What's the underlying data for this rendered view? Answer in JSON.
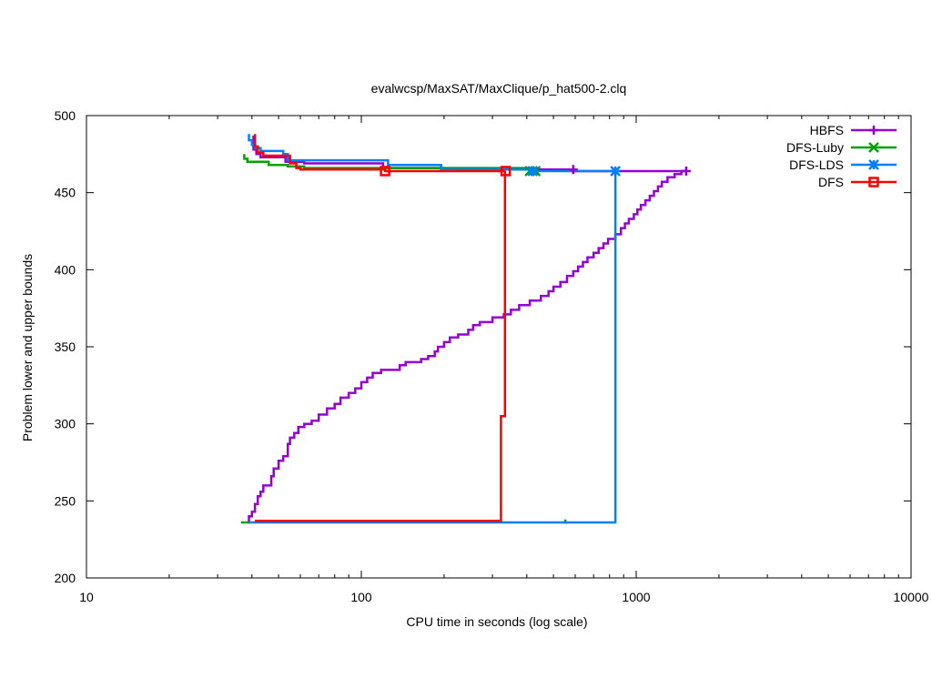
{
  "chart_data": {
    "type": "line",
    "title": "evalwcsp/MaxSAT/MaxClique/p_hat500-2.clq",
    "xlabel": "CPU time in seconds (log scale)",
    "ylabel": "Problem lower and upper bounds",
    "x_scale": "log",
    "xlim": [
      10,
      10000
    ],
    "ylim": [
      200,
      500
    ],
    "x_ticks": [
      10,
      100,
      1000,
      10000
    ],
    "x_tick_labels": [
      "10",
      "100",
      "1000",
      "10000"
    ],
    "y_ticks": [
      200,
      250,
      300,
      350,
      400,
      450,
      500
    ],
    "y_tick_labels": [
      "200",
      "250",
      "300",
      "350",
      "400",
      "450",
      "500"
    ],
    "grid": false,
    "legend_position": "top-right",
    "series": [
      {
        "name": "HBFS",
        "color": "#9400d3",
        "marker": "plus",
        "upper": [
          [
            40.5,
            487
          ],
          [
            40.5,
            478
          ],
          [
            41.5,
            478
          ],
          [
            41.5,
            475
          ],
          [
            43,
            475
          ],
          [
            43,
            473
          ],
          [
            53,
            473
          ],
          [
            53,
            470
          ],
          [
            62,
            470
          ],
          [
            62,
            469
          ],
          [
            120,
            469
          ],
          [
            120,
            466
          ],
          [
            200,
            466
          ],
          [
            200,
            465
          ],
          [
            590,
            465
          ],
          [
            590,
            464
          ],
          [
            1520,
            464
          ]
        ],
        "lower": [
          [
            38.5,
            236
          ],
          [
            39,
            236
          ],
          [
            39,
            240
          ],
          [
            40,
            240
          ],
          [
            40,
            243
          ],
          [
            41,
            243
          ],
          [
            41,
            248
          ],
          [
            42,
            248
          ],
          [
            42,
            253
          ],
          [
            43,
            253
          ],
          [
            43,
            256
          ],
          [
            44,
            256
          ],
          [
            44,
            260
          ],
          [
            47,
            260
          ],
          [
            47,
            266
          ],
          [
            48,
            266
          ],
          [
            48,
            271
          ],
          [
            50,
            271
          ],
          [
            50,
            276
          ],
          [
            52,
            276
          ],
          [
            52,
            279
          ],
          [
            54,
            279
          ],
          [
            54,
            287
          ],
          [
            55,
            287
          ],
          [
            55,
            291
          ],
          [
            57,
            291
          ],
          [
            57,
            294
          ],
          [
            59,
            294
          ],
          [
            59,
            298
          ],
          [
            62,
            298
          ],
          [
            62,
            300
          ],
          [
            66,
            300
          ],
          [
            66,
            302
          ],
          [
            70,
            302
          ],
          [
            70,
            306
          ],
          [
            75,
            306
          ],
          [
            75,
            310
          ],
          [
            80,
            310
          ],
          [
            80,
            313
          ],
          [
            84,
            313
          ],
          [
            84,
            317
          ],
          [
            90,
            317
          ],
          [
            90,
            320
          ],
          [
            95,
            320
          ],
          [
            95,
            323
          ],
          [
            100,
            323
          ],
          [
            100,
            327
          ],
          [
            105,
            327
          ],
          [
            105,
            330
          ],
          [
            110,
            330
          ],
          [
            110,
            333
          ],
          [
            118,
            333
          ],
          [
            118,
            335
          ],
          [
            138,
            335
          ],
          [
            138,
            338
          ],
          [
            145,
            338
          ],
          [
            145,
            340
          ],
          [
            165,
            340
          ],
          [
            165,
            342
          ],
          [
            175,
            342
          ],
          [
            175,
            344
          ],
          [
            185,
            344
          ],
          [
            185,
            347
          ],
          [
            190,
            347
          ],
          [
            190,
            350
          ],
          [
            200,
            350
          ],
          [
            200,
            353
          ],
          [
            210,
            353
          ],
          [
            210,
            356
          ],
          [
            225,
            356
          ],
          [
            225,
            358
          ],
          [
            245,
            358
          ],
          [
            245,
            361
          ],
          [
            255,
            361
          ],
          [
            255,
            364
          ],
          [
            270,
            364
          ],
          [
            270,
            366
          ],
          [
            300,
            366
          ],
          [
            300,
            369
          ],
          [
            330,
            369
          ],
          [
            330,
            371
          ],
          [
            350,
            371
          ],
          [
            350,
            374
          ],
          [
            375,
            374
          ],
          [
            375,
            377
          ],
          [
            410,
            377
          ],
          [
            410,
            380
          ],
          [
            450,
            380
          ],
          [
            450,
            383
          ],
          [
            480,
            383
          ],
          [
            480,
            386
          ],
          [
            500,
            386
          ],
          [
            500,
            389
          ],
          [
            530,
            389
          ],
          [
            530,
            392
          ],
          [
            560,
            392
          ],
          [
            560,
            396
          ],
          [
            590,
            396
          ],
          [
            590,
            399
          ],
          [
            615,
            399
          ],
          [
            615,
            402
          ],
          [
            640,
            402
          ],
          [
            640,
            405
          ],
          [
            665,
            405
          ],
          [
            665,
            408
          ],
          [
            700,
            408
          ],
          [
            700,
            411
          ],
          [
            730,
            411
          ],
          [
            730,
            414
          ],
          [
            760,
            414
          ],
          [
            760,
            417
          ],
          [
            790,
            417
          ],
          [
            790,
            420
          ],
          [
            840,
            420
          ],
          [
            840,
            423
          ],
          [
            880,
            423
          ],
          [
            880,
            427
          ],
          [
            910,
            427
          ],
          [
            910,
            430
          ],
          [
            940,
            430
          ],
          [
            940,
            433
          ],
          [
            980,
            433
          ],
          [
            980,
            436
          ],
          [
            1010,
            436
          ],
          [
            1010,
            439
          ],
          [
            1040,
            439
          ],
          [
            1040,
            442
          ],
          [
            1080,
            442
          ],
          [
            1080,
            445
          ],
          [
            1120,
            445
          ],
          [
            1120,
            448
          ],
          [
            1160,
            448
          ],
          [
            1160,
            451
          ],
          [
            1200,
            451
          ],
          [
            1200,
            454
          ],
          [
            1240,
            454
          ],
          [
            1240,
            457
          ],
          [
            1300,
            457
          ],
          [
            1300,
            460
          ],
          [
            1380,
            460
          ],
          [
            1380,
            462
          ],
          [
            1460,
            462
          ],
          [
            1460,
            464
          ],
          [
            1520,
            464
          ]
        ],
        "markers": [
          [
            590,
            465
          ],
          [
            1520,
            464
          ]
        ]
      },
      {
        "name": "DFS-Luby",
        "color": "#00a000",
        "marker": "x",
        "upper": [
          [
            37.5,
            475
          ],
          [
            37.5,
            472
          ],
          [
            38.5,
            472
          ],
          [
            38.5,
            470
          ],
          [
            46,
            470
          ],
          [
            46,
            468
          ],
          [
            54,
            468
          ],
          [
            54,
            467
          ],
          [
            62,
            467
          ],
          [
            62,
            466
          ],
          [
            410,
            466
          ],
          [
            410,
            465
          ],
          [
            430,
            465
          ]
        ],
        "lower": [
          [
            36.5,
            236
          ],
          [
            39,
            236
          ]
        ],
        "lower_extra": [
          [
            545,
            236
          ],
          [
            560,
            236
          ],
          [
            552,
            236
          ],
          [
            552,
            238
          ]
        ],
        "markers": [
          [
            410,
            464
          ],
          [
            430,
            464
          ]
        ]
      },
      {
        "name": "DFS-LDS",
        "color": "#0080ff",
        "marker": "star",
        "upper": [
          [
            39,
            488
          ],
          [
            39,
            484
          ],
          [
            40,
            484
          ],
          [
            40,
            481
          ],
          [
            41,
            481
          ],
          [
            41,
            479
          ],
          [
            43,
            479
          ],
          [
            43,
            477
          ],
          [
            52,
            477
          ],
          [
            52,
            475
          ],
          [
            54,
            475
          ],
          [
            54,
            471
          ],
          [
            125,
            471
          ],
          [
            125,
            468
          ],
          [
            195,
            468
          ],
          [
            195,
            465
          ],
          [
            420,
            465
          ],
          [
            420,
            464
          ],
          [
            840,
            464
          ]
        ],
        "lower": [
          [
            39,
            236
          ],
          [
            840,
            236
          ],
          [
            840,
            464
          ]
        ],
        "markers": [
          [
            420,
            464
          ],
          [
            840,
            464
          ]
        ]
      },
      {
        "name": "DFS",
        "color": "#ff0000",
        "marker": "square",
        "upper": [
          [
            41,
            488
          ],
          [
            41,
            480
          ],
          [
            42,
            480
          ],
          [
            42,
            476
          ],
          [
            44,
            476
          ],
          [
            44,
            474
          ],
          [
            55,
            474
          ],
          [
            55,
            469
          ],
          [
            58,
            469
          ],
          [
            58,
            466
          ],
          [
            60,
            466
          ],
          [
            60,
            465
          ],
          [
            122,
            465
          ],
          [
            122,
            464
          ],
          [
            335,
            464
          ]
        ],
        "lower": [
          [
            41,
            237
          ],
          [
            322,
            237
          ],
          [
            322,
            305
          ],
          [
            333,
            305
          ],
          [
            333,
            464
          ]
        ],
        "markers": [
          [
            122,
            464
          ],
          [
            335,
            464
          ]
        ]
      }
    ]
  }
}
